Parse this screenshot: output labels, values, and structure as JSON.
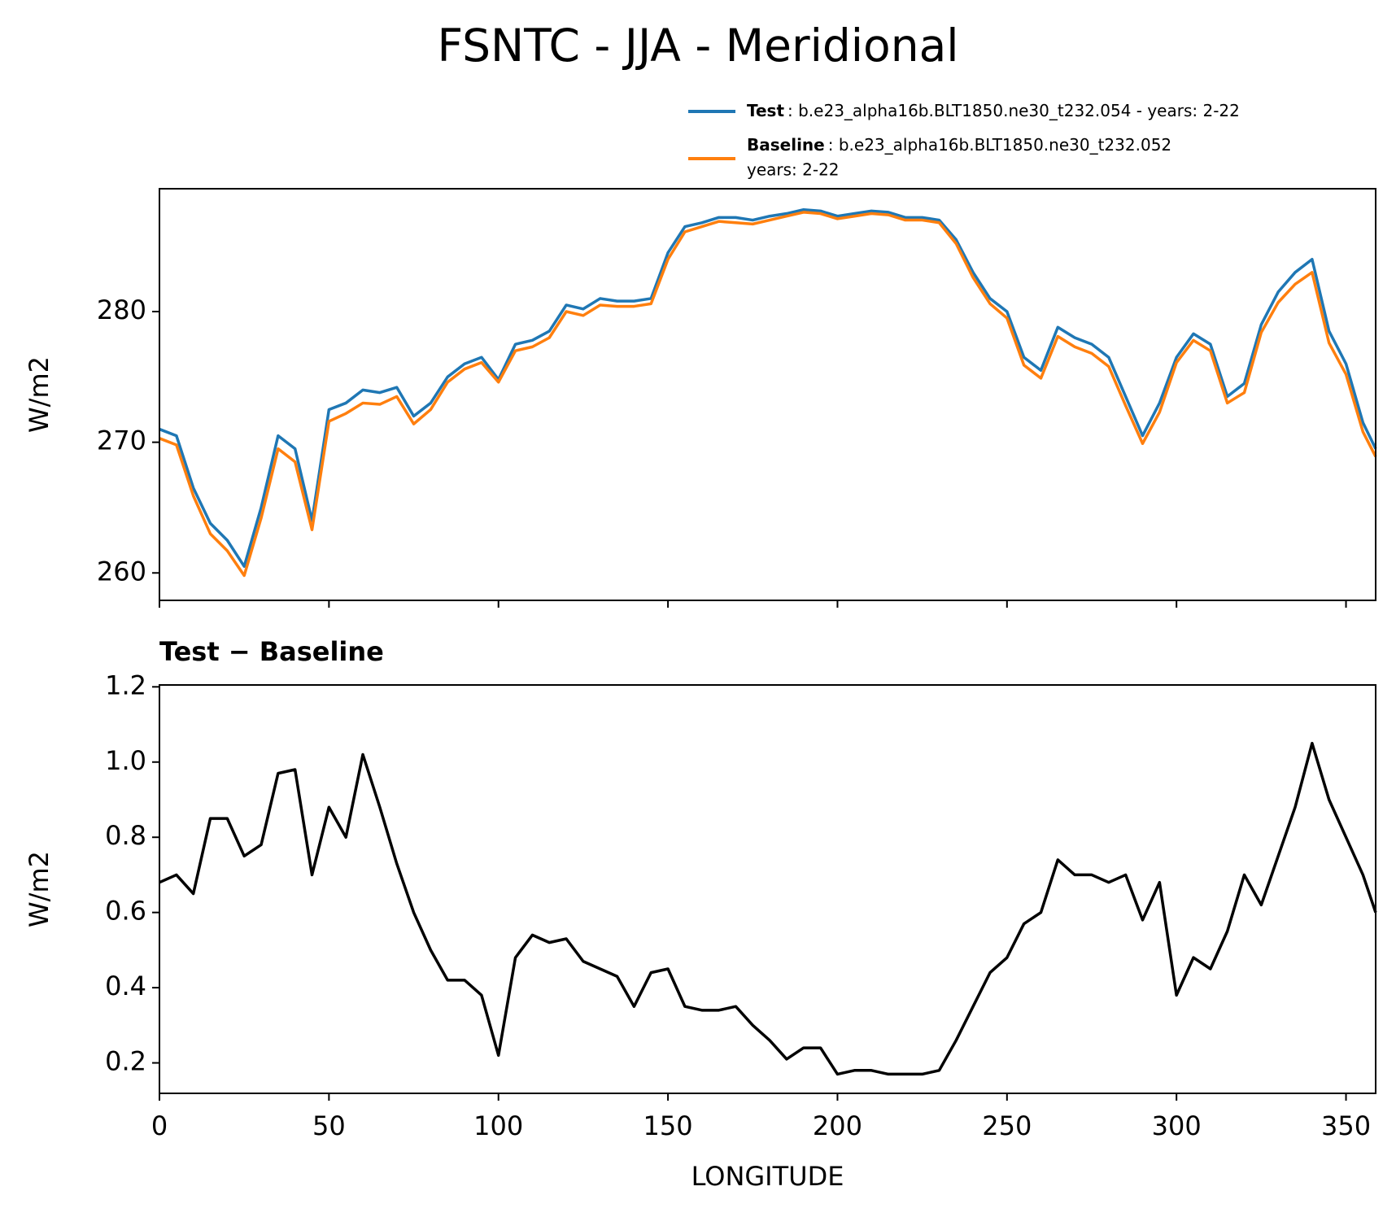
{
  "title": "FSNTC - JJA - Meridional",
  "chart_data": [
    {
      "type": "line",
      "ylabel": "W/m2",
      "legend": "upper right",
      "x": [
        0,
        5,
        10,
        15,
        20,
        25,
        30,
        35,
        40,
        45,
        50,
        55,
        60,
        65,
        70,
        75,
        80,
        85,
        90,
        95,
        100,
        105,
        110,
        115,
        120,
        125,
        130,
        135,
        140,
        145,
        150,
        155,
        160,
        165,
        170,
        175,
        180,
        185,
        190,
        195,
        200,
        205,
        210,
        215,
        220,
        225,
        230,
        235,
        240,
        245,
        250,
        255,
        260,
        265,
        270,
        275,
        280,
        285,
        290,
        295,
        300,
        305,
        310,
        315,
        320,
        325,
        330,
        335,
        340,
        345,
        350,
        355,
        358.75
      ],
      "series": [
        {
          "name": "Test",
          "description": ": b.e23_alpha16b.BLT1850.ne30_t232.054 - years: 2-22",
          "color": "#1f77b4",
          "values": [
            271.0,
            270.5,
            266.5,
            263.8,
            262.5,
            260.5,
            265.0,
            270.5,
            269.5,
            264.0,
            272.5,
            273.0,
            274.0,
            273.8,
            274.2,
            272.0,
            273.0,
            275.0,
            276.0,
            276.5,
            274.8,
            277.5,
            277.8,
            278.5,
            280.5,
            280.2,
            281.0,
            280.8,
            280.8,
            281.0,
            284.5,
            286.5,
            286.8,
            287.2,
            287.2,
            287.0,
            287.3,
            287.5,
            287.8,
            287.7,
            287.3,
            287.5,
            287.7,
            287.6,
            287.2,
            287.2,
            287.0,
            285.5,
            283.0,
            281.0,
            280.0,
            276.5,
            275.5,
            278.8,
            278.0,
            277.5,
            276.5,
            273.5,
            270.5,
            273.0,
            276.5,
            278.3,
            277.5,
            273.5,
            274.5,
            279.0,
            281.5,
            283.0,
            284.0,
            278.5,
            276.0,
            271.5,
            269.5
          ]
        },
        {
          "name": "Baseline",
          "description": ": b.e23_alpha16b.BLT1850.ne30_t232.052",
          "description2": "years: 2-22",
          "color": "#ff7f0e",
          "values": [
            270.3,
            269.8,
            265.9,
            263.0,
            261.7,
            259.8,
            264.2,
            269.5,
            268.5,
            263.3,
            271.6,
            272.2,
            273.0,
            272.9,
            273.5,
            271.4,
            272.5,
            274.6,
            275.6,
            276.1,
            274.6,
            277.0,
            277.3,
            278.0,
            280.0,
            279.7,
            280.5,
            280.4,
            280.4,
            280.6,
            284.0,
            286.1,
            286.5,
            286.9,
            286.8,
            286.7,
            287.0,
            287.3,
            287.6,
            287.5,
            287.1,
            287.3,
            287.5,
            287.4,
            287.0,
            287.0,
            286.8,
            285.2,
            282.6,
            280.6,
            279.5,
            275.9,
            274.9,
            278.1,
            277.3,
            276.8,
            275.8,
            272.8,
            269.9,
            272.3,
            276.1,
            277.8,
            277.0,
            273.0,
            273.8,
            278.4,
            280.7,
            282.1,
            283.0,
            277.6,
            275.2,
            270.8,
            268.9
          ]
        }
      ],
      "xlim": [
        0,
        358.75
      ],
      "xticks": [
        0,
        50,
        100,
        150,
        200,
        250,
        300,
        350
      ],
      "ylim": [
        257.9,
        289.4
      ],
      "yticks": [
        260,
        270,
        280
      ]
    },
    {
      "type": "line",
      "title": "Test − Baseline",
      "ylabel": "W/m2",
      "xlabel": "LONGITUDE",
      "x": [
        0,
        5,
        10,
        15,
        20,
        25,
        30,
        35,
        40,
        45,
        50,
        55,
        60,
        65,
        70,
        75,
        80,
        85,
        90,
        95,
        100,
        105,
        110,
        115,
        120,
        125,
        130,
        135,
        140,
        145,
        150,
        155,
        160,
        165,
        170,
        175,
        180,
        185,
        190,
        195,
        200,
        205,
        210,
        215,
        220,
        225,
        230,
        235,
        240,
        245,
        250,
        255,
        260,
        265,
        270,
        275,
        280,
        285,
        290,
        295,
        300,
        305,
        310,
        315,
        320,
        325,
        330,
        335,
        340,
        345,
        350,
        355,
        358.75
      ],
      "series": [
        {
          "color": "#000000",
          "values": [
            0.68,
            0.7,
            0.65,
            0.85,
            0.85,
            0.75,
            0.78,
            0.97,
            0.98,
            0.7,
            0.88,
            0.8,
            1.02,
            0.88,
            0.73,
            0.6,
            0.5,
            0.42,
            0.42,
            0.38,
            0.22,
            0.48,
            0.54,
            0.52,
            0.53,
            0.47,
            0.45,
            0.43,
            0.35,
            0.44,
            0.45,
            0.35,
            0.34,
            0.34,
            0.35,
            0.3,
            0.26,
            0.21,
            0.24,
            0.24,
            0.17,
            0.18,
            0.18,
            0.17,
            0.17,
            0.17,
            0.18,
            0.26,
            0.35,
            0.44,
            0.48,
            0.57,
            0.6,
            0.74,
            0.7,
            0.7,
            0.68,
            0.7,
            0.58,
            0.68,
            0.38,
            0.48,
            0.45,
            0.55,
            0.7,
            0.62,
            0.75,
            0.88,
            1.05,
            0.9,
            0.8,
            0.7,
            0.6
          ]
        }
      ],
      "xlim": [
        0,
        358.75
      ],
      "xticks": [
        0,
        50,
        100,
        150,
        200,
        250,
        300,
        350
      ],
      "ylim": [
        0.119,
        1.205
      ],
      "yticks": [
        {
          "value": 0.2,
          "label": "0.2"
        },
        {
          "value": 0.4,
          "label": "0.4"
        },
        {
          "value": 0.6,
          "label": "0.6"
        },
        {
          "value": 0.8,
          "label": "0.8"
        },
        {
          "value": 1.0,
          "label": "1.0"
        },
        {
          "value": 1.2,
          "label": "1.2"
        }
      ]
    }
  ]
}
